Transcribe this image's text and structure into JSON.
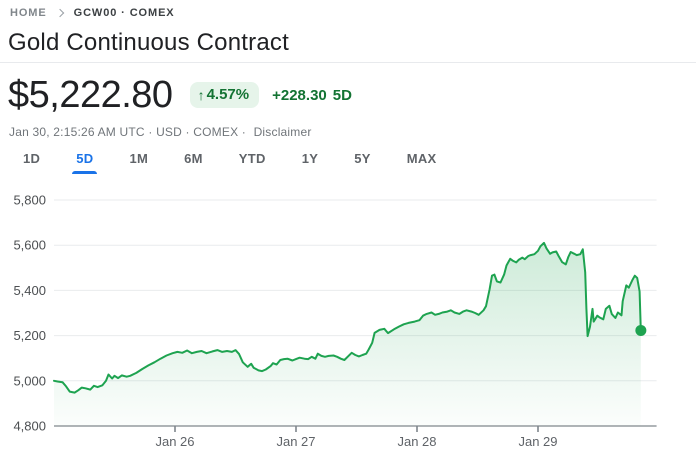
{
  "breadcrumb": {
    "home": "HOME",
    "symbol": "GCW00 · COMEX"
  },
  "title": "Gold Continuous Contract",
  "quote": {
    "price": "$5,222.80",
    "change_arrow": "↑",
    "change_percent": "4.57%",
    "change_absolute": "+228.30",
    "change_period": "5D",
    "meta_prefix": "Jan 30, 2:15:26 AM UTC · USD · COMEX ·",
    "disclaimer": "Disclaimer"
  },
  "tabs": {
    "items": [
      {
        "label": "1D",
        "active": false
      },
      {
        "label": "5D",
        "active": true
      },
      {
        "label": "1M",
        "active": false
      },
      {
        "label": "6M",
        "active": false
      },
      {
        "label": "YTD",
        "active": false
      },
      {
        "label": "1Y",
        "active": false
      },
      {
        "label": "5Y",
        "active": false
      },
      {
        "label": "MAX",
        "active": false
      }
    ]
  },
  "colors": {
    "accent_blue": "#1a73e8",
    "green_dark": "#137333",
    "badge_bg": "#e6f4ea",
    "line_green": "#1ea350",
    "text_primary": "#202124",
    "text_secondary": "#5f6368",
    "text_tertiary": "#70757a",
    "gridline": "#e9ebed",
    "axis": "#7f868c"
  },
  "chart_data": {
    "type": "area",
    "title": "Gold Continuous Contract — 5 day price",
    "x_unit": "trading days (0 = session start Jan 25)",
    "xlim": [
      0,
      4.98
    ],
    "ylim": [
      4800,
      5830
    ],
    "grid": "horizontal",
    "legend": "none",
    "y_ticks": [
      {
        "value": 4800,
        "label": "4,800"
      },
      {
        "value": 5000,
        "label": "5,000"
      },
      {
        "value": 5200,
        "label": "5,200"
      },
      {
        "value": 5400,
        "label": "5,400"
      },
      {
        "value": 5600,
        "label": "5,600"
      },
      {
        "value": 5800,
        "label": "5,800"
      }
    ],
    "x_ticks": [
      {
        "pos": 1,
        "label": "Jan 26"
      },
      {
        "pos": 2,
        "label": "Jan 27"
      },
      {
        "pos": 3,
        "label": "Jan 28"
      },
      {
        "pos": 4,
        "label": "Jan 29"
      }
    ],
    "last_price": 5222.8,
    "series": [
      {
        "name": "GCW00",
        "points": [
          [
            0.0,
            5000
          ],
          [
            0.03,
            4997
          ],
          [
            0.07,
            4994
          ],
          [
            0.1,
            4975
          ],
          [
            0.13,
            4952
          ],
          [
            0.17,
            4948
          ],
          [
            0.2,
            4958
          ],
          [
            0.23,
            4970
          ],
          [
            0.26,
            4967
          ],
          [
            0.3,
            4961
          ],
          [
            0.33,
            4978
          ],
          [
            0.36,
            4972
          ],
          [
            0.4,
            4980
          ],
          [
            0.43,
            5000
          ],
          [
            0.45,
            5028
          ],
          [
            0.48,
            5010
          ],
          [
            0.5,
            5022
          ],
          [
            0.53,
            5012
          ],
          [
            0.56,
            5024
          ],
          [
            0.6,
            5018
          ],
          [
            0.63,
            5022
          ],
          [
            0.68,
            5035
          ],
          [
            0.73,
            5052
          ],
          [
            0.78,
            5068
          ],
          [
            0.83,
            5082
          ],
          [
            0.88,
            5098
          ],
          [
            0.93,
            5112
          ],
          [
            0.98,
            5122
          ],
          [
            1.02,
            5128
          ],
          [
            1.06,
            5124
          ],
          [
            1.1,
            5134
          ],
          [
            1.14,
            5122
          ],
          [
            1.18,
            5128
          ],
          [
            1.22,
            5132
          ],
          [
            1.26,
            5122
          ],
          [
            1.31,
            5130
          ],
          [
            1.35,
            5136
          ],
          [
            1.39,
            5128
          ],
          [
            1.43,
            5132
          ],
          [
            1.47,
            5128
          ],
          [
            1.5,
            5136
          ],
          [
            1.53,
            5118
          ],
          [
            1.56,
            5082
          ],
          [
            1.6,
            5062
          ],
          [
            1.63,
            5075
          ],
          [
            1.65,
            5058
          ],
          [
            1.69,
            5046
          ],
          [
            1.72,
            5043
          ],
          [
            1.75,
            5050
          ],
          [
            1.79,
            5065
          ],
          [
            1.81,
            5078
          ],
          [
            1.84,
            5072
          ],
          [
            1.87,
            5092
          ],
          [
            1.9,
            5096
          ],
          [
            1.93,
            5098
          ],
          [
            1.97,
            5090
          ],
          [
            2.0,
            5096
          ],
          [
            2.03,
            5102
          ],
          [
            2.07,
            5098
          ],
          [
            2.1,
            5096
          ],
          [
            2.13,
            5106
          ],
          [
            2.16,
            5098
          ],
          [
            2.18,
            5120
          ],
          [
            2.21,
            5110
          ],
          [
            2.24,
            5106
          ],
          [
            2.27,
            5110
          ],
          [
            2.31,
            5112
          ],
          [
            2.34,
            5106
          ],
          [
            2.37,
            5098
          ],
          [
            2.4,
            5092
          ],
          [
            2.43,
            5108
          ],
          [
            2.46,
            5124
          ],
          [
            2.49,
            5114
          ],
          [
            2.52,
            5108
          ],
          [
            2.55,
            5114
          ],
          [
            2.58,
            5120
          ],
          [
            2.6,
            5138
          ],
          [
            2.63,
            5168
          ],
          [
            2.65,
            5212
          ],
          [
            2.69,
            5225
          ],
          [
            2.73,
            5230
          ],
          [
            2.76,
            5211
          ],
          [
            2.81,
            5228
          ],
          [
            2.85,
            5240
          ],
          [
            2.89,
            5250
          ],
          [
            2.93,
            5256
          ],
          [
            2.98,
            5262
          ],
          [
            3.02,
            5268
          ],
          [
            3.05,
            5288
          ],
          [
            3.08,
            5296
          ],
          [
            3.12,
            5302
          ],
          [
            3.15,
            5292
          ],
          [
            3.18,
            5296
          ],
          [
            3.21,
            5302
          ],
          [
            3.25,
            5306
          ],
          [
            3.28,
            5312
          ],
          [
            3.31,
            5302
          ],
          [
            3.35,
            5296
          ],
          [
            3.38,
            5306
          ],
          [
            3.41,
            5312
          ],
          [
            3.45,
            5306
          ],
          [
            3.48,
            5300
          ],
          [
            3.51,
            5292
          ],
          [
            3.55,
            5312
          ],
          [
            3.57,
            5330
          ],
          [
            3.6,
            5405
          ],
          [
            3.62,
            5465
          ],
          [
            3.64,
            5470
          ],
          [
            3.66,
            5440
          ],
          [
            3.69,
            5435
          ],
          [
            3.72,
            5470
          ],
          [
            3.74,
            5510
          ],
          [
            3.77,
            5540
          ],
          [
            3.79,
            5532
          ],
          [
            3.82,
            5524
          ],
          [
            3.84,
            5535
          ],
          [
            3.87,
            5545
          ],
          [
            3.89,
            5538
          ],
          [
            3.92,
            5552
          ],
          [
            3.94,
            5556
          ],
          [
            3.97,
            5560
          ],
          [
            4.0,
            5575
          ],
          [
            4.02,
            5595
          ],
          [
            4.05,
            5610
          ],
          [
            4.07,
            5586
          ],
          [
            4.1,
            5562
          ],
          [
            4.12,
            5568
          ],
          [
            4.15,
            5572
          ],
          [
            4.17,
            5552
          ],
          [
            4.2,
            5525
          ],
          [
            4.23,
            5515
          ],
          [
            4.25,
            5548
          ],
          [
            4.27,
            5570
          ],
          [
            4.3,
            5562
          ],
          [
            4.32,
            5556
          ],
          [
            4.35,
            5560
          ],
          [
            4.37,
            5582
          ],
          [
            4.39,
            5480
          ],
          [
            4.4,
            5320
          ],
          [
            4.41,
            5198
          ],
          [
            4.43,
            5240
          ],
          [
            4.45,
            5318
          ],
          [
            4.46,
            5262
          ],
          [
            4.49,
            5288
          ],
          [
            4.51,
            5280
          ],
          [
            4.54,
            5272
          ],
          [
            4.56,
            5318
          ],
          [
            4.59,
            5332
          ],
          [
            4.61,
            5295
          ],
          [
            4.64,
            5278
          ],
          [
            4.66,
            5302
          ],
          [
            4.69,
            5290
          ],
          [
            4.7,
            5352
          ],
          [
            4.73,
            5422
          ],
          [
            4.75,
            5412
          ],
          [
            4.78,
            5446
          ],
          [
            4.8,
            5465
          ],
          [
            4.82,
            5455
          ],
          [
            4.84,
            5395
          ],
          [
            4.85,
            5222.8
          ]
        ]
      }
    ]
  }
}
